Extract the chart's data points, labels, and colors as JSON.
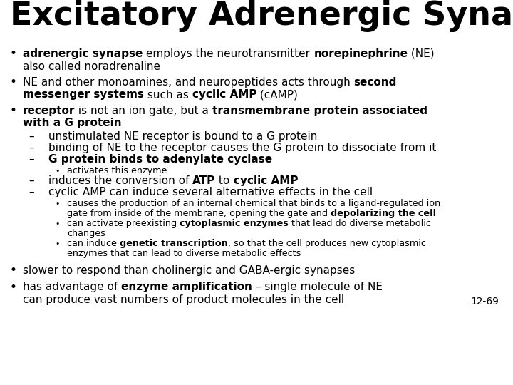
{
  "title": "Excitatory Adrenergic Synapse",
  "bg_color": "#ffffff",
  "title_color": "#000000",
  "slide_number": "12-69"
}
